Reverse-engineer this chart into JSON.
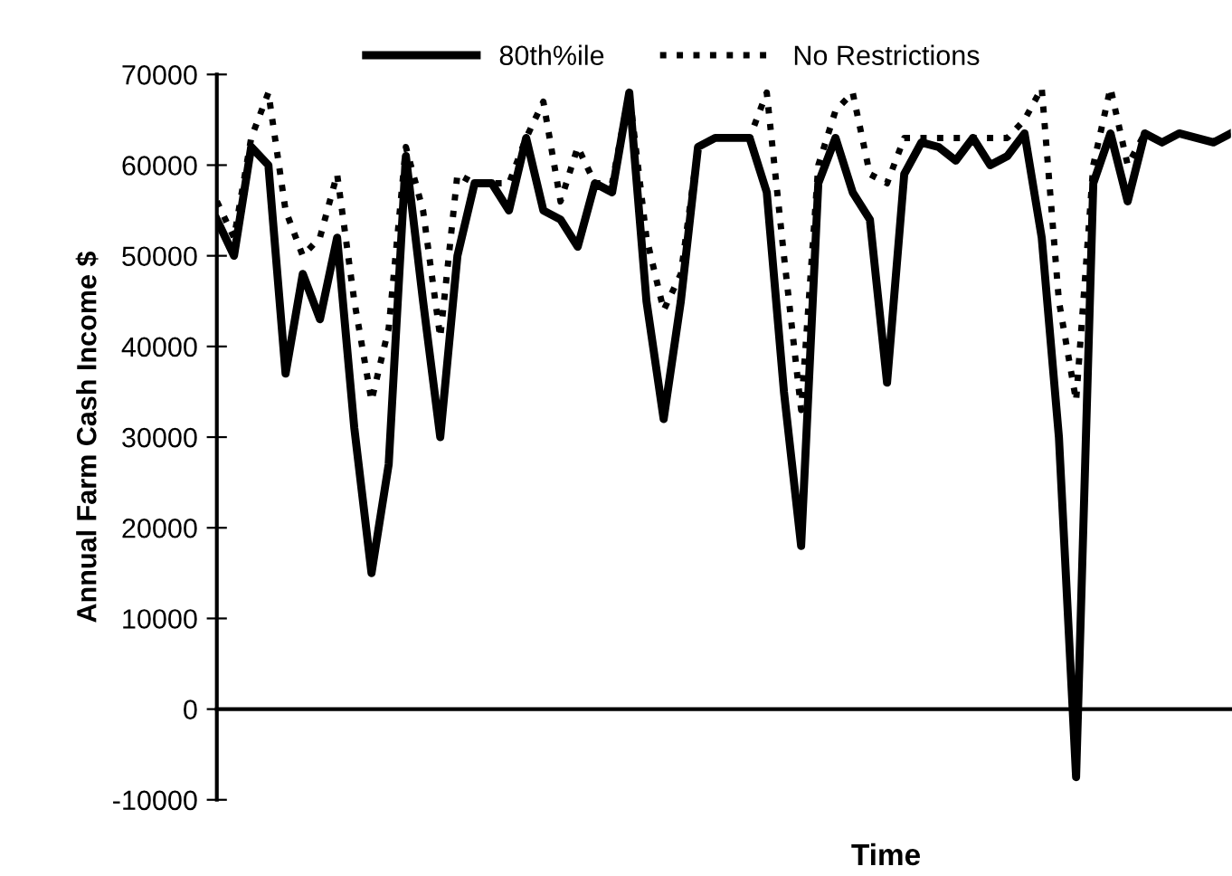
{
  "chart_data": {
    "type": "line",
    "xlabel": "Time",
    "ylabel": "Annual Farm Cash Income $",
    "categories": [
      null,
      null,
      null,
      null,
      null,
      null,
      null,
      null,
      null,
      null,
      null,
      null,
      null,
      null,
      null,
      null,
      null,
      null,
      null,
      null,
      null,
      null,
      null,
      null,
      null,
      null,
      null,
      null,
      null,
      null,
      null,
      null,
      null,
      null,
      null,
      null,
      null,
      null,
      null,
      null,
      null,
      null,
      null,
      null,
      null,
      null,
      null,
      null,
      null,
      null,
      null,
      null,
      null,
      null,
      null,
      null,
      null,
      null,
      null,
      null
    ],
    "series": [
      {
        "name": "80th%ile",
        "color": "#000000",
        "line_style": "solid",
        "values": [
          54000,
          50000,
          62000,
          60000,
          37000,
          48000,
          43000,
          52000,
          31000,
          15000,
          27000,
          61000,
          45000,
          30000,
          50000,
          58000,
          58000,
          55000,
          63000,
          55000,
          54000,
          51000,
          58000,
          57000,
          68000,
          45000,
          32000,
          45000,
          62000,
          63000,
          63000,
          63000,
          57000,
          35000,
          18000,
          58000,
          63000,
          57000,
          54000,
          36000,
          59000,
          62500,
          62000,
          60500,
          63000,
          60000,
          61000,
          63500,
          52000,
          30000,
          -7500,
          58000,
          63500,
          56000,
          63500,
          62500,
          63500,
          63000,
          62500,
          63500
        ]
      },
      {
        "name": "No Restrictions",
        "color": "#000000",
        "line_style": "dotted",
        "values": [
          56000,
          52000,
          63000,
          68000,
          55000,
          50000,
          52000,
          59000,
          45000,
          34000,
          42000,
          62000,
          55000,
          41000,
          59000,
          58000,
          58000,
          58000,
          63000,
          67000,
          56000,
          62000,
          58000,
          58000,
          68000,
          52000,
          44000,
          48000,
          62000,
          63000,
          63000,
          63000,
          68000,
          50000,
          33000,
          60000,
          66000,
          68000,
          59000,
          58000,
          63000,
          63000,
          63000,
          63000,
          63000,
          63000,
          63000,
          65000,
          68500,
          45000,
          34000,
          60000,
          68500,
          60000,
          63500,
          62500,
          63500,
          63000,
          62500,
          63500
        ]
      }
    ],
    "ylim": [
      -10000,
      70000
    ],
    "yticks": [
      -10000,
      0,
      10000,
      20000,
      30000,
      40000,
      50000,
      60000,
      70000
    ],
    "legend": "top",
    "marker": "none"
  }
}
